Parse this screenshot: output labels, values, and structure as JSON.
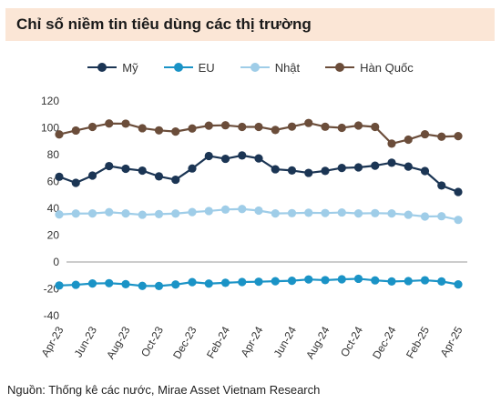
{
  "title": "Chỉ số niềm tin tiêu dùng các thị trường",
  "source": "Nguồn: Thống kê các nước, Mirae Asset Vietnam Research",
  "chart_data": {
    "type": "line",
    "title": "Chỉ số niềm tin tiêu dùng các thị trường",
    "xlabel": "",
    "ylabel": "",
    "ylim": [
      -40,
      120
    ],
    "yticks": [
      -40,
      -20,
      0,
      20,
      40,
      60,
      80,
      100,
      120
    ],
    "grid": false,
    "legend_position": "top-center",
    "categories": [
      "Apr-23",
      "May-23",
      "Jun-23",
      "Jul-23",
      "Aug-23",
      "Sep-23",
      "Oct-23",
      "Nov-23",
      "Dec-23",
      "Jan-24",
      "Feb-24",
      "Mar-24",
      "Apr-24",
      "May-24",
      "Jun-24",
      "Jul-24",
      "Aug-24",
      "Sep-24",
      "Oct-24",
      "Nov-24",
      "Dec-24",
      "Jan-25",
      "Feb-25",
      "Mar-25",
      "Apr-25"
    ],
    "tick_labels": [
      "Apr-23",
      "Jun-23",
      "Aug-23",
      "Oct-23",
      "Dec-23",
      "Feb-24",
      "Apr-24",
      "Jun-24",
      "Aug-24",
      "Oct-24",
      "Dec-24",
      "Feb-25",
      "Apr-25"
    ],
    "series": [
      {
        "name": "Mỹ",
        "color": "#1b3554",
        "values": [
          63.5,
          59.0,
          64.4,
          71.5,
          69.5,
          68.1,
          63.8,
          61.3,
          69.7,
          79.0,
          76.9,
          79.4,
          77.2,
          69.1,
          68.2,
          66.4,
          67.9,
          70.1,
          70.5,
          71.8,
          74.0,
          71.1,
          67.8,
          57.0,
          52.2
        ]
      },
      {
        "name": "EU",
        "color": "#1a93c6",
        "values": [
          -17.5,
          -17.0,
          -16.0,
          -15.8,
          -16.5,
          -17.8,
          -17.9,
          -16.8,
          -15.0,
          -16.1,
          -15.5,
          -14.9,
          -14.7,
          -14.3,
          -14.0,
          -13.0,
          -13.5,
          -12.9,
          -12.5,
          -13.7,
          -14.5,
          -14.2,
          -13.6,
          -14.5,
          -16.7
        ]
      },
      {
        "name": "Nhật",
        "color": "#9fcde8",
        "values": [
          35.4,
          36.1,
          36.2,
          37.1,
          36.2,
          35.2,
          35.7,
          36.1,
          37.2,
          38.0,
          39.1,
          39.5,
          38.3,
          36.2,
          36.4,
          36.7,
          36.5,
          36.9,
          36.2,
          36.4,
          36.2,
          35.2,
          33.9,
          34.1,
          31.4
        ]
      },
      {
        "name": "Hàn Quốc",
        "color": "#6b4d3a",
        "values": [
          95.1,
          98.0,
          100.7,
          103.2,
          103.1,
          99.7,
          98.1,
          97.2,
          99.5,
          101.6,
          101.9,
          100.7,
          100.7,
          98.4,
          100.9,
          103.6,
          100.8,
          100.0,
          101.7,
          100.7,
          88.2,
          91.2,
          95.2,
          93.4,
          93.8
        ]
      }
    ]
  }
}
